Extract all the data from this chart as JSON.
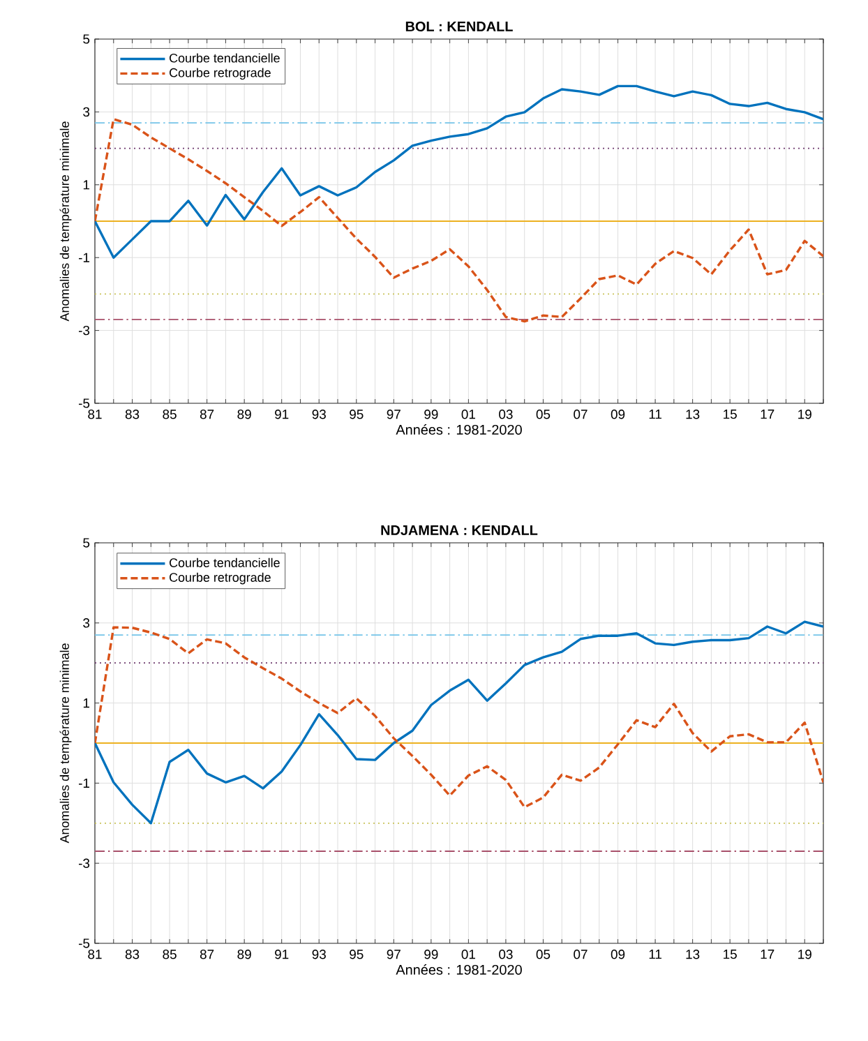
{
  "chart_data": [
    {
      "type": "line",
      "title": "BOL : KENDALL",
      "xlabel": "Années : 1981-2020",
      "ylabel": "Anomalies de température minimale",
      "x": [
        1981,
        1982,
        1983,
        1984,
        1985,
        1986,
        1987,
        1988,
        1989,
        1990,
        1991,
        1992,
        1993,
        1994,
        1995,
        1996,
        1997,
        1998,
        1999,
        2000,
        2001,
        2002,
        2003,
        2004,
        2005,
        2006,
        2007,
        2008,
        2009,
        2010,
        2011,
        2012,
        2013,
        2014,
        2015,
        2016,
        2017,
        2018,
        2019,
        2020
      ],
      "xlim": [
        1981,
        2020
      ],
      "xticks": [
        {
          "value": 1981,
          "label": "81"
        },
        {
          "value": 1982,
          "label": null
        },
        {
          "value": 1983,
          "label": "83"
        },
        {
          "value": 1984,
          "label": null
        },
        {
          "value": 1985,
          "label": "85"
        },
        {
          "value": 1986,
          "label": null
        },
        {
          "value": 1987,
          "label": "87"
        },
        {
          "value": 1988,
          "label": null
        },
        {
          "value": 1989,
          "label": "89"
        },
        {
          "value": 1990,
          "label": null
        },
        {
          "value": 1991,
          "label": "91"
        },
        {
          "value": 1992,
          "label": null
        },
        {
          "value": 1993,
          "label": "93"
        },
        {
          "value": 1994,
          "label": null
        },
        {
          "value": 1995,
          "label": "95"
        },
        {
          "value": 1996,
          "label": null
        },
        {
          "value": 1997,
          "label": "97"
        },
        {
          "value": 1998,
          "label": null
        },
        {
          "value": 1999,
          "label": "99"
        },
        {
          "value": 2000,
          "label": null
        },
        {
          "value": 2001,
          "label": "01"
        },
        {
          "value": 2002,
          "label": null
        },
        {
          "value": 2003,
          "label": "03"
        },
        {
          "value": 2004,
          "label": null
        },
        {
          "value": 2005,
          "label": "05"
        },
        {
          "value": 2006,
          "label": null
        },
        {
          "value": 2007,
          "label": "07"
        },
        {
          "value": 2008,
          "label": null
        },
        {
          "value": 2009,
          "label": "09"
        },
        {
          "value": 2010,
          "label": null
        },
        {
          "value": 2011,
          "label": "11"
        },
        {
          "value": 2012,
          "label": null
        },
        {
          "value": 2013,
          "label": "13"
        },
        {
          "value": 2014,
          "label": null
        },
        {
          "value": 2015,
          "label": "15"
        },
        {
          "value": 2016,
          "label": null
        },
        {
          "value": 2017,
          "label": "17"
        },
        {
          "value": 2018,
          "label": null
        },
        {
          "value": 2019,
          "label": "19"
        },
        {
          "value": 2020,
          "label": null
        }
      ],
      "ylim": [
        -5,
        5
      ],
      "yticks": [
        -5,
        -3,
        -1,
        1,
        3,
        5
      ],
      "grid": true,
      "legend": "top left",
      "series": [
        {
          "name": "Courbe tendancielle",
          "color": "#0072bd",
          "line_style": "solid",
          "values": [
            0,
            -1.0,
            -0.5,
            0,
            0,
            0.56,
            -0.12,
            0.72,
            0.05,
            0.8,
            1.45,
            0.71,
            0.96,
            0.71,
            0.93,
            1.35,
            1.67,
            2.07,
            2.21,
            2.32,
            2.39,
            2.55,
            2.87,
            2.99,
            3.37,
            3.62,
            3.56,
            3.47,
            3.71,
            3.71,
            3.56,
            3.43,
            3.56,
            3.46,
            3.22,
            3.16,
            3.25,
            3.08,
            2.99,
            2.8
          ]
        },
        {
          "name": "Courbe retrograde",
          "color": "#d95319",
          "line_style": "dashed",
          "values": [
            0,
            2.8,
            2.65,
            2.3,
            2.0,
            1.7,
            1.38,
            1.04,
            0.66,
            0.28,
            -0.13,
            0.25,
            0.66,
            0.09,
            -0.48,
            -0.98,
            -1.55,
            -1.3,
            -1.09,
            -0.77,
            -1.24,
            -1.89,
            -2.63,
            -2.75,
            -2.59,
            -2.63,
            -2.12,
            -1.59,
            -1.49,
            -1.74,
            -1.17,
            -0.82,
            -1.01,
            -1.46,
            -0.8,
            -0.23,
            -1.46,
            -1.34,
            -0.54,
            -0.96
          ]
        }
      ],
      "ref_lines": [
        {
          "axis": "y",
          "value": 2.7,
          "color": "#74c4e8",
          "line_style": "dashdot"
        },
        {
          "axis": "y",
          "value": 2,
          "color": "#6e3a6e",
          "line_style": "dotted"
        },
        {
          "axis": "y",
          "value": 0,
          "color": "#edb120",
          "line_style": "solid"
        },
        {
          "axis": "y",
          "value": -2,
          "color": "#c9c35a",
          "line_style": "dotted"
        },
        {
          "axis": "y",
          "value": -2.7,
          "color": "#a8506a",
          "line_style": "dashdot"
        }
      ]
    },
    {
      "type": "line",
      "title": "NDJAMENA : KENDALL",
      "xlabel": "Années : 1981-2020",
      "ylabel": "Anomalies de température minimale",
      "x": [
        1981,
        1982,
        1983,
        1984,
        1985,
        1986,
        1987,
        1988,
        1989,
        1990,
        1991,
        1992,
        1993,
        1994,
        1995,
        1996,
        1997,
        1998,
        1999,
        2000,
        2001,
        2002,
        2003,
        2004,
        2005,
        2006,
        2007,
        2008,
        2009,
        2010,
        2011,
        2012,
        2013,
        2014,
        2015,
        2016,
        2017,
        2018,
        2019,
        2020
      ],
      "xlim": [
        1981,
        2020
      ],
      "xticks": [
        {
          "value": 1981,
          "label": "81"
        },
        {
          "value": 1982,
          "label": null
        },
        {
          "value": 1983,
          "label": "83"
        },
        {
          "value": 1984,
          "label": null
        },
        {
          "value": 1985,
          "label": "85"
        },
        {
          "value": 1986,
          "label": null
        },
        {
          "value": 1987,
          "label": "87"
        },
        {
          "value": 1988,
          "label": null
        },
        {
          "value": 1989,
          "label": "89"
        },
        {
          "value": 1990,
          "label": null
        },
        {
          "value": 1991,
          "label": "91"
        },
        {
          "value": 1992,
          "label": null
        },
        {
          "value": 1993,
          "label": "93"
        },
        {
          "value": 1994,
          "label": null
        },
        {
          "value": 1995,
          "label": "95"
        },
        {
          "value": 1996,
          "label": null
        },
        {
          "value": 1997,
          "label": "97"
        },
        {
          "value": 1998,
          "label": null
        },
        {
          "value": 1999,
          "label": "99"
        },
        {
          "value": 2000,
          "label": null
        },
        {
          "value": 2001,
          "label": "01"
        },
        {
          "value": 2002,
          "label": null
        },
        {
          "value": 2003,
          "label": "03"
        },
        {
          "value": 2004,
          "label": null
        },
        {
          "value": 2005,
          "label": "05"
        },
        {
          "value": 2006,
          "label": null
        },
        {
          "value": 2007,
          "label": "07"
        },
        {
          "value": 2008,
          "label": null
        },
        {
          "value": 2009,
          "label": "09"
        },
        {
          "value": 2010,
          "label": null
        },
        {
          "value": 2011,
          "label": "11"
        },
        {
          "value": 2012,
          "label": null
        },
        {
          "value": 2013,
          "label": "13"
        },
        {
          "value": 2014,
          "label": null
        },
        {
          "value": 2015,
          "label": "15"
        },
        {
          "value": 2016,
          "label": null
        },
        {
          "value": 2017,
          "label": "17"
        },
        {
          "value": 2018,
          "label": null
        },
        {
          "value": 2019,
          "label": "19"
        },
        {
          "value": 2020,
          "label": null
        }
      ],
      "ylim": [
        -5,
        5
      ],
      "yticks": [
        -5,
        -3,
        -1,
        1,
        3,
        5
      ],
      "grid": true,
      "legend": "top left",
      "series": [
        {
          "name": "Courbe tendancielle",
          "color": "#0072bd",
          "line_style": "solid",
          "values": [
            0,
            -0.98,
            -1.54,
            -2.0,
            -0.47,
            -0.17,
            -0.76,
            -0.98,
            -0.82,
            -1.13,
            -0.71,
            -0.05,
            0.72,
            0.2,
            -0.4,
            -0.42,
            0.0,
            0.31,
            0.95,
            1.31,
            1.58,
            1.06,
            1.49,
            1.95,
            2.14,
            2.28,
            2.6,
            2.68,
            2.68,
            2.74,
            2.49,
            2.45,
            2.53,
            2.57,
            2.57,
            2.62,
            2.91,
            2.74,
            3.03,
            2.91
          ]
        },
        {
          "name": "Courbe retrograde",
          "color": "#d95319",
          "line_style": "dashed",
          "values": [
            0,
            2.89,
            2.88,
            2.76,
            2.6,
            2.24,
            2.59,
            2.49,
            2.14,
            1.87,
            1.61,
            1.29,
            1.0,
            0.75,
            1.12,
            0.68,
            0.12,
            -0.32,
            -0.79,
            -1.31,
            -0.81,
            -0.58,
            -0.92,
            -1.6,
            -1.36,
            -0.79,
            -0.94,
            -0.61,
            -0.03,
            0.57,
            0.4,
            0.98,
            0.25,
            -0.21,
            0.17,
            0.22,
            0.02,
            0.02,
            0.51,
            -0.98
          ]
        }
      ],
      "ref_lines": [
        {
          "axis": "y",
          "value": 2.7,
          "color": "#74c4e8",
          "line_style": "dashdot"
        },
        {
          "axis": "y",
          "value": 2,
          "color": "#6e3a6e",
          "line_style": "dotted"
        },
        {
          "axis": "y",
          "value": 0,
          "color": "#edb120",
          "line_style": "solid"
        },
        {
          "axis": "y",
          "value": -2,
          "color": "#c9c35a",
          "line_style": "dotted"
        },
        {
          "axis": "y",
          "value": -2.7,
          "color": "#a8506a",
          "line_style": "dashdot"
        }
      ]
    }
  ]
}
